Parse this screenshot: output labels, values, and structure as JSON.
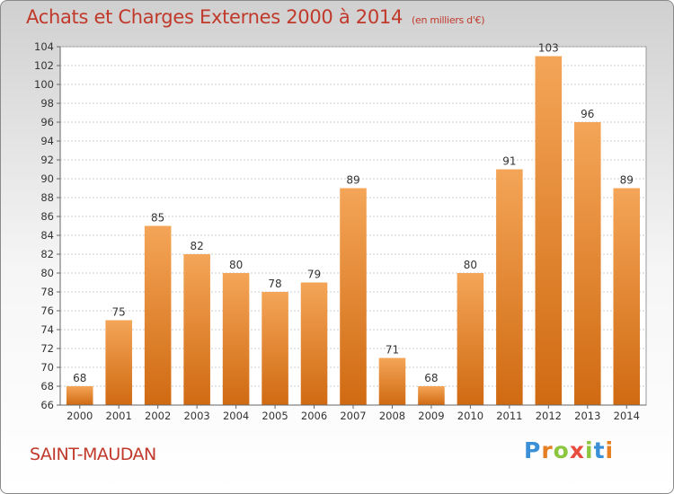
{
  "header": {
    "title": "Achats et Charges Externes 2000 à 2014",
    "unit": "(en milliers d'€)"
  },
  "footer": {
    "commune": "SAINT-MAUDAN",
    "logo": {
      "text": "Proxiti",
      "colors": [
        "#3a8fd6",
        "#e67e22",
        "#8cc63f",
        "#e74c3c",
        "#8cc63f",
        "#3a8fd6",
        "#e67e22"
      ]
    }
  },
  "colors": {
    "bar_light": "#f4a557",
    "bar_dark": "#d06a12",
    "title": "#c0392b",
    "grid": "#bdbdbd"
  },
  "chart_data": {
    "type": "bar",
    "categories": [
      "2000",
      "2001",
      "2002",
      "2003",
      "2004",
      "2005",
      "2006",
      "2007",
      "2008",
      "2009",
      "2010",
      "2011",
      "2012",
      "2013",
      "2014"
    ],
    "values": [
      68,
      75,
      85,
      82,
      80,
      78,
      79,
      89,
      71,
      68,
      80,
      91,
      103,
      96,
      89
    ],
    "ylim": [
      66,
      104
    ],
    "yticks": [
      66,
      68,
      70,
      72,
      74,
      76,
      78,
      80,
      82,
      84,
      86,
      88,
      90,
      92,
      94,
      96,
      98,
      100,
      102,
      104
    ],
    "grid": true,
    "data_labels": true
  }
}
